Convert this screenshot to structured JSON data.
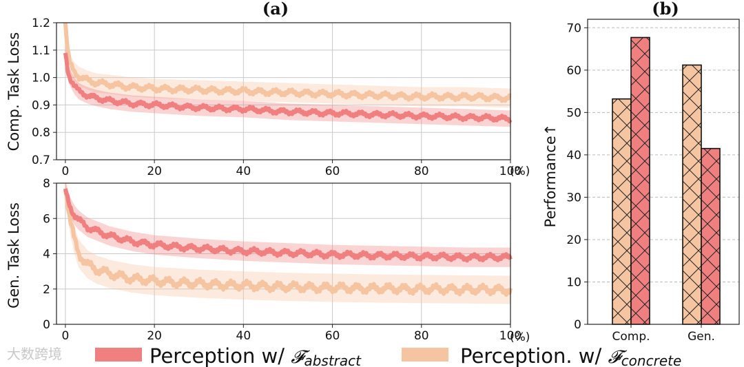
{
  "watermark": "大数跨境",
  "legend": {
    "abstract": {
      "prefix": "Perception w/ ",
      "symbol": "𝓕",
      "subscript": "abstract"
    },
    "concrete": {
      "prefix": "Perception. w/ ",
      "symbol": "𝓕",
      "subscript": "concrete"
    }
  },
  "colors": {
    "abstract": "#f08080",
    "concrete": "#f5c4a1",
    "grid": "#c9c9c9",
    "dashed_grid": "#bbbbbb"
  },
  "chart_data": [
    {
      "id": "a-top",
      "type": "line",
      "title": "(a)",
      "ylabel": "Comp. Task Loss",
      "xlabel": "",
      "x_unit_label": "(%)",
      "xlim": [
        -2,
        100
      ],
      "ylim": [
        0.7,
        1.2
      ],
      "xticks": [
        0,
        20,
        40,
        60,
        80,
        100
      ],
      "yticks": [
        "0.7",
        "0.8",
        "0.9",
        "1.0",
        "1.1",
        "1.2"
      ],
      "grid": true,
      "series": [
        {
          "name": "Perception w/ F_abstract",
          "x": [
            0,
            0.5,
            1,
            2,
            3,
            5,
            7,
            10,
            15,
            20,
            30,
            40,
            50,
            60,
            70,
            80,
            90,
            100
          ],
          "values": [
            1.09,
            1.03,
            1.0,
            0.97,
            0.95,
            0.935,
            0.925,
            0.915,
            0.905,
            0.9,
            0.89,
            0.885,
            0.875,
            0.87,
            0.865,
            0.86,
            0.855,
            0.85
          ],
          "band": 0.03
        },
        {
          "name": "Perception. w/ F_concrete",
          "x": [
            0,
            0.5,
            1,
            2,
            3,
            5,
            7,
            10,
            15,
            20,
            30,
            40,
            50,
            60,
            70,
            80,
            90,
            100
          ],
          "values": [
            1.2,
            1.1,
            1.05,
            1.02,
            1.005,
            0.99,
            0.98,
            0.975,
            0.965,
            0.96,
            0.955,
            0.95,
            0.945,
            0.94,
            0.935,
            0.93,
            0.93,
            0.925
          ],
          "band": 0.035
        }
      ]
    },
    {
      "id": "a-bottom",
      "type": "line",
      "title": "",
      "ylabel": "Gen. Task Loss",
      "xlabel": "",
      "x_unit_label": "(%)",
      "xlim": [
        -2,
        100
      ],
      "ylim": [
        0,
        8
      ],
      "xticks": [
        0,
        20,
        40,
        60,
        80,
        100
      ],
      "yticks": [
        "0",
        "2",
        "4",
        "6",
        "8"
      ],
      "grid": true,
      "series": [
        {
          "name": "Perception w/ F_abstract",
          "x": [
            0,
            0.5,
            1,
            2,
            3,
            5,
            7,
            10,
            15,
            20,
            30,
            40,
            50,
            60,
            70,
            80,
            90,
            100
          ],
          "values": [
            7.6,
            7.1,
            6.7,
            6.2,
            5.9,
            5.5,
            5.3,
            5.0,
            4.7,
            4.5,
            4.3,
            4.15,
            4.05,
            3.95,
            3.9,
            3.85,
            3.8,
            3.8
          ],
          "band": 0.55
        },
        {
          "name": "Perception. w/ F_concrete",
          "x": [
            0,
            0.5,
            1,
            2,
            3,
            5,
            7,
            10,
            15,
            20,
            30,
            40,
            50,
            60,
            70,
            80,
            90,
            100
          ],
          "values": [
            7.8,
            6.9,
            6.0,
            4.8,
            4.0,
            3.4,
            3.1,
            2.85,
            2.6,
            2.45,
            2.3,
            2.2,
            2.12,
            2.07,
            2.03,
            2.0,
            1.98,
            1.95
          ],
          "band": 0.8
        }
      ]
    },
    {
      "id": "b",
      "type": "bar",
      "title": "(b)",
      "ylabel": "Performance↑",
      "categories": [
        "Comp.",
        "Gen."
      ],
      "ylim": [
        0,
        72
      ],
      "yticks": [
        "0",
        "10",
        "20",
        "30",
        "40",
        "50",
        "60",
        "70"
      ],
      "grid": true,
      "series": [
        {
          "name": "Perception. w/ F_concrete",
          "values": [
            53.2,
            61.2
          ]
        },
        {
          "name": "Perception w/ F_abstract",
          "values": [
            67.7,
            41.5
          ]
        }
      ]
    }
  ]
}
